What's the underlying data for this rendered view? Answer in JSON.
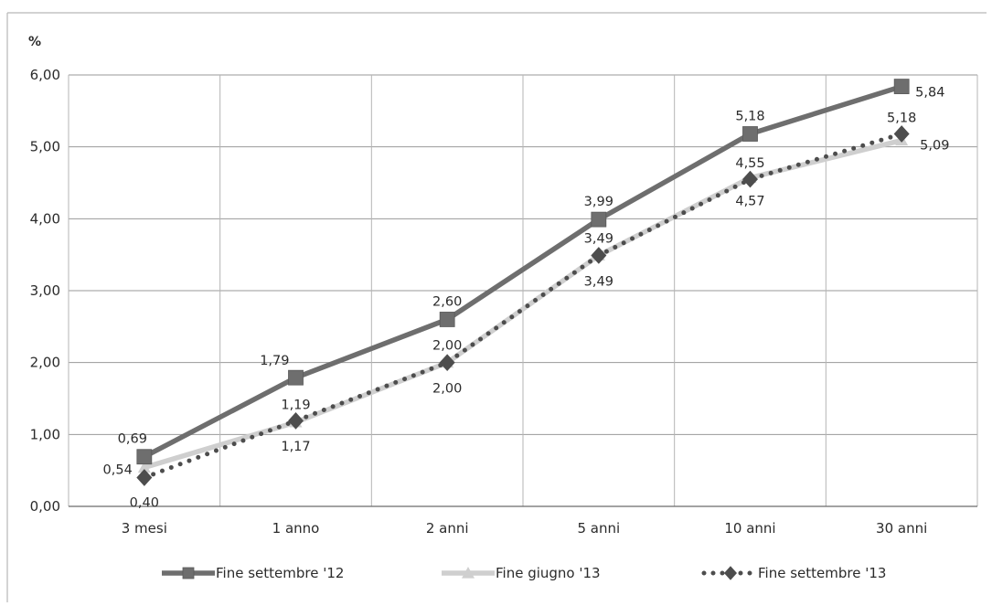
{
  "chart_data": {
    "type": "line",
    "unit_label": "%",
    "categories": [
      "3 mesi",
      "1 anno",
      "2 anni",
      "5 anni",
      "10 anni",
      "30 anni"
    ],
    "ylim": [
      0,
      6
    ],
    "ytick_labels": [
      "0,00",
      "1,00",
      "2,00",
      "3,00",
      "4,00",
      "5,00",
      "6,00"
    ],
    "grid": true,
    "legend_position": "bottom",
    "series": [
      {
        "name": "Fine settembre '12",
        "values": [
          0.69,
          1.79,
          2.6,
          3.99,
          5.18,
          5.84
        ],
        "labels": [
          "0,69",
          "1,79",
          "2,60",
          "3,99",
          "5,18",
          "5,84"
        ],
        "color": "#6e6e6e",
        "marker": "square",
        "line_style": "solid"
      },
      {
        "name": "Fine giugno '13",
        "values": [
          0.54,
          1.17,
          2.0,
          3.49,
          4.57,
          5.09
        ],
        "labels": [
          "0,54",
          "1,17",
          "2,00",
          "3,49",
          "4,57",
          "5,09"
        ],
        "color": "#cfcfcf",
        "marker": "triangle",
        "line_style": "solid"
      },
      {
        "name": "Fine settembre '13",
        "values": [
          0.4,
          1.19,
          2.0,
          3.49,
          4.55,
          5.18
        ],
        "labels": [
          "0,40",
          "1,19",
          "2,00",
          "3,49",
          "4,55",
          "5,18"
        ],
        "color": "#4d4d4d",
        "marker": "diamond",
        "line_style": "dotted"
      }
    ]
  }
}
